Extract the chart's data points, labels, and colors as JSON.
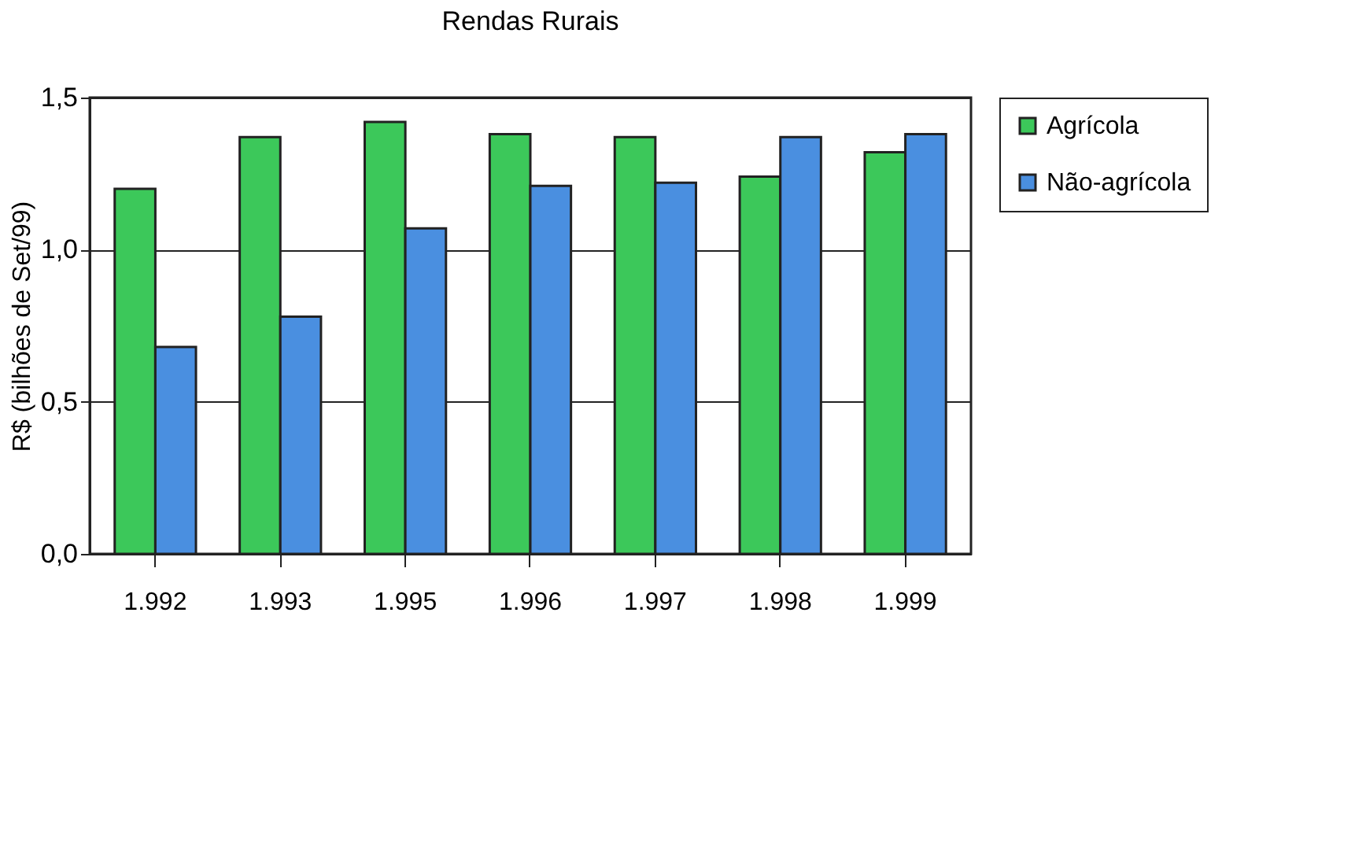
{
  "chart_data": {
    "type": "bar",
    "title": "Rendas Rurais",
    "ylabel": "R$ (bilhões de Set/99)",
    "categories": [
      "1.992",
      "1.993",
      "1.995",
      "1.996",
      "1.997",
      "1.998",
      "1.999"
    ],
    "series": [
      {
        "name": "Agrícola",
        "color": "#3cc85a",
        "values": [
          1.2,
          1.37,
          1.42,
          1.38,
          1.37,
          1.24,
          1.32
        ]
      },
      {
        "name": "Não-agrícola",
        "color": "#4a8fe0",
        "values": [
          0.68,
          0.78,
          1.07,
          1.21,
          1.22,
          1.37,
          1.38
        ]
      }
    ],
    "ylim": [
      0,
      1.5
    ],
    "yticks": [
      {
        "value": 0,
        "label": "0,0"
      },
      {
        "value": 0.5,
        "label": "0,5"
      },
      {
        "value": 1,
        "label": "1,0"
      },
      {
        "value": 1.5,
        "label": "1,5"
      }
    ],
    "grid": "y",
    "legend": "right"
  }
}
